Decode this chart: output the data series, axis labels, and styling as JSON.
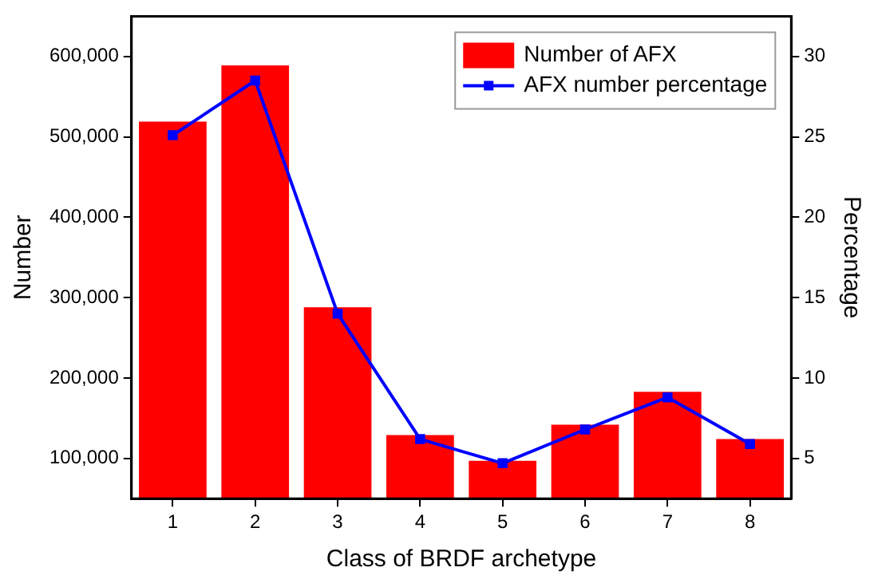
{
  "chart_data": {
    "type": "bar",
    "xlabel": "Class of BRDF archetype",
    "ylabel": "Number",
    "y2label": "Percentage",
    "categories": [
      "1",
      "2",
      "3",
      "4",
      "5",
      "6",
      "7",
      "8"
    ],
    "series": [
      {
        "name": "Number of AFX",
        "color": "#ff0000",
        "values": [
          519000,
          589000,
          288000,
          129000,
          97000,
          142000,
          183000,
          124000
        ]
      },
      {
        "name": "AFX number percentage",
        "type": "line",
        "axis": "y2",
        "color": "#0000ff",
        "marker": "square",
        "values": [
          25.1,
          28.5,
          14.0,
          6.2,
          4.7,
          6.8,
          8.8,
          5.9
        ]
      }
    ],
    "ylim": [
      50000,
      650000
    ],
    "yticks": [
      {
        "value": 100000,
        "label": "100,000"
      },
      {
        "value": 200000,
        "label": "200,000"
      },
      {
        "value": 300000,
        "label": "300,000"
      },
      {
        "value": 400000,
        "label": "400,000"
      },
      {
        "value": 500000,
        "label": "500,000"
      },
      {
        "value": 600000,
        "label": "600,000"
      }
    ],
    "y2lim": [
      2.5,
      32.5
    ],
    "y2ticks": [
      5,
      10,
      15,
      20,
      25,
      30
    ],
    "grid": false,
    "legend": "top right"
  }
}
